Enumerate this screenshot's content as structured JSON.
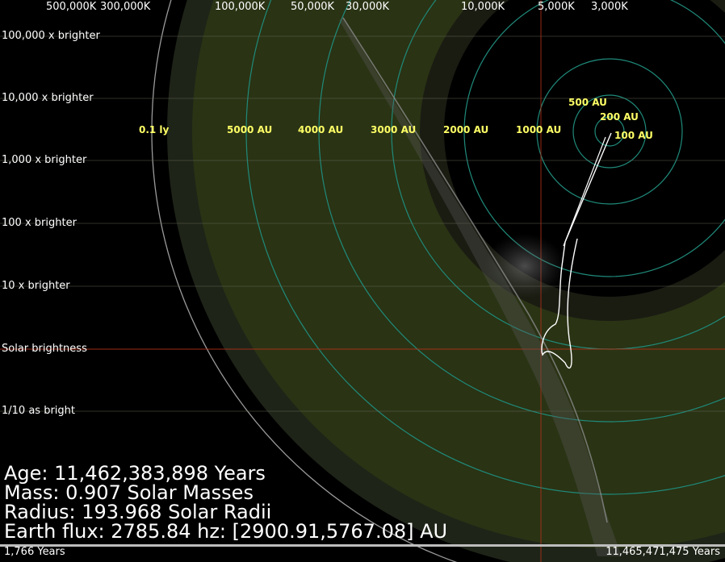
{
  "chart_data": {
    "type": "scatter",
    "temperature_ticks": [
      "500,000K",
      "300,000K",
      "100,000K",
      "50,000K",
      "30,000K",
      "10,000K",
      "5,000K",
      "3,000K"
    ],
    "brightness_ticks": [
      "100,000 x brighter",
      "10,000 x brighter",
      "1,000 x brighter",
      "100 x brighter",
      "10 x brighter",
      "Solar brightness",
      "1/10 as bright"
    ],
    "orbit_labels": [
      "0.1 ly",
      "5000 AU",
      "4000 AU",
      "3000 AU",
      "2000 AU",
      "1000 AU",
      "500 AU",
      "200 AU",
      "100 AU"
    ],
    "colors": {
      "habitable_zone": "#2a3314",
      "outer_ring": "#1e2418",
      "orbit_rings": "#1f8a7a",
      "axis_label": "#ffff66",
      "sun_crosshair": "#b03018",
      "track": "#ffffff"
    }
  },
  "info": {
    "age": "Age: 11,462,383,898 Years",
    "mass": "Mass: 0.907 Solar Masses",
    "radius": "Radius: 193.968 Solar Radii",
    "flux": "Earth flux: 2785.84 hz: [2900.91,5767.08] AU"
  },
  "timeline": {
    "start": "1,766 Years",
    "end": "11,465,471,475 Years"
  }
}
